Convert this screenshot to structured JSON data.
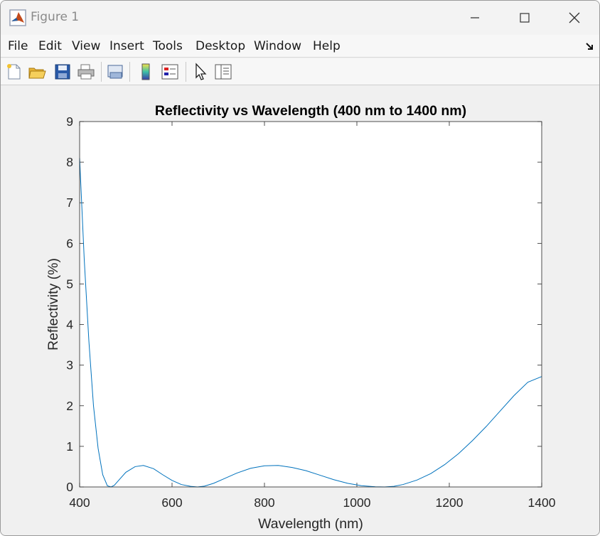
{
  "window": {
    "title": "Figure 1"
  },
  "menu": {
    "items": [
      "File",
      "Edit",
      "View",
      "Insert",
      "Tools",
      "Desktop",
      "Window",
      "Help"
    ]
  },
  "toolbar": {
    "icons": [
      "new-figure-icon",
      "open-file-icon",
      "save-icon",
      "print-icon",
      "link-plot-icon",
      "colorbar-icon",
      "legend-icon",
      "pointer-icon",
      "property-inspector-icon"
    ]
  },
  "colors": {
    "line": "#0072bd",
    "axes": "#262626"
  },
  "chart_data": {
    "type": "line",
    "title": "Reflectivity vs Wavelength (400 nm to 1400 nm)",
    "xlabel": "Wavelength (nm)",
    "ylabel": "Reflectivity (%)",
    "xlim": [
      400,
      1400
    ],
    "ylim": [
      0,
      9
    ],
    "xticks": [
      400,
      600,
      800,
      1000,
      1200,
      1400
    ],
    "yticks": [
      0,
      1,
      2,
      3,
      4,
      5,
      6,
      7,
      8,
      9
    ],
    "grid": false,
    "legend": "none",
    "series": [
      {
        "x": [
          400,
          410,
          420,
          430,
          440,
          450,
          460,
          468,
          475,
          485,
          500,
          520,
          538,
          560,
          580,
          600,
          620,
          640,
          655,
          670,
          690,
          710,
          740,
          770,
          800,
          830,
          860,
          890,
          920,
          950,
          980,
          1010,
          1040,
          1060,
          1080,
          1100,
          1130,
          1160,
          1190,
          1220,
          1250,
          1280,
          1310,
          1340,
          1370,
          1400
        ],
        "y": [
          8.1,
          5.6,
          3.6,
          2.0,
          0.95,
          0.3,
          0.03,
          0.0,
          0.04,
          0.17,
          0.36,
          0.5,
          0.53,
          0.45,
          0.3,
          0.16,
          0.06,
          0.015,
          0.0,
          0.02,
          0.09,
          0.19,
          0.34,
          0.46,
          0.52,
          0.53,
          0.48,
          0.4,
          0.29,
          0.18,
          0.09,
          0.03,
          0.005,
          0.0,
          0.015,
          0.06,
          0.17,
          0.33,
          0.55,
          0.82,
          1.14,
          1.49,
          1.87,
          2.25,
          2.58,
          2.72
        ]
      }
    ]
  }
}
